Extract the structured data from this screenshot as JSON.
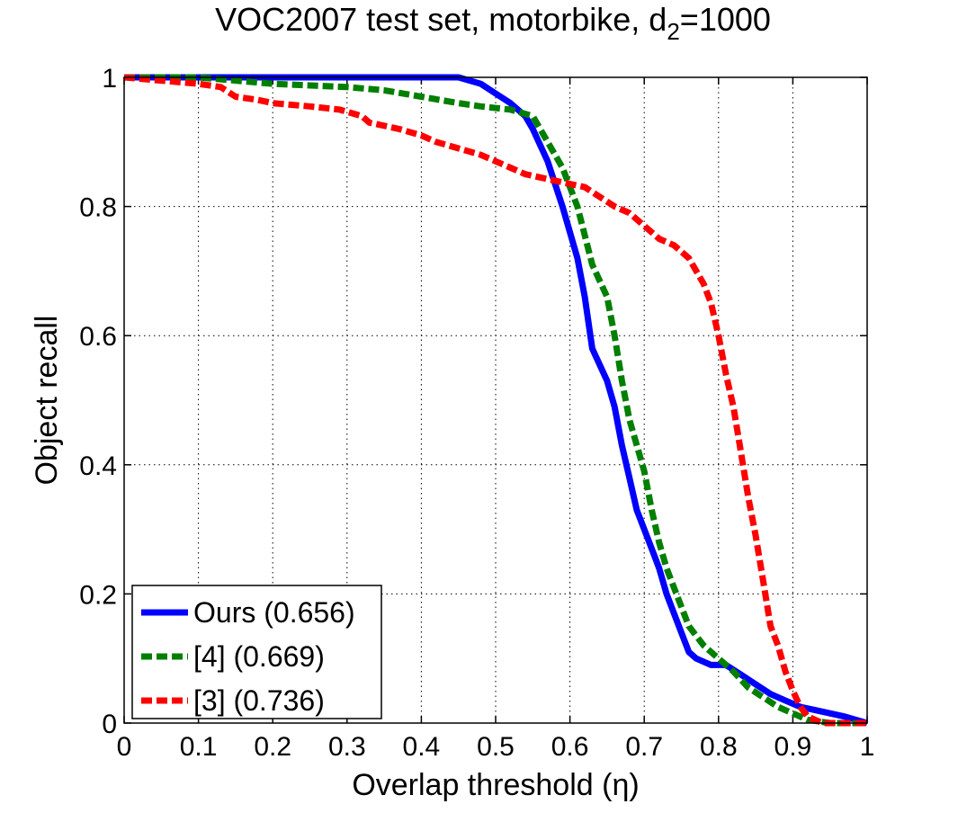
{
  "chart_data": {
    "type": "line",
    "title_main": "VOC2007 test set, motorbike, d",
    "title_sub": "2",
    "title_tail": "=1000",
    "xlabel": "Overlap threshold (η)",
    "ylabel": "Object recall",
    "xlim": [
      0,
      1
    ],
    "ylim": [
      0,
      1
    ],
    "xticks": [
      "0",
      "0.1",
      "0.2",
      "0.3",
      "0.4",
      "0.5",
      "0.6",
      "0.7",
      "0.8",
      "0.9",
      "1"
    ],
    "yticks": [
      "0",
      "0.2",
      "0.4",
      "0.6",
      "0.8",
      "1"
    ],
    "grid": true,
    "legend_position": "bottom-left",
    "series": [
      {
        "name": "Ours (0.656)",
        "color": "#0000ff",
        "style": "solid",
        "points": [
          [
            0,
            1
          ],
          [
            0.1,
            1
          ],
          [
            0.2,
            1
          ],
          [
            0.3,
            1
          ],
          [
            0.4,
            1
          ],
          [
            0.45,
            1
          ],
          [
            0.48,
            0.99
          ],
          [
            0.5,
            0.975
          ],
          [
            0.52,
            0.96
          ],
          [
            0.54,
            0.94
          ],
          [
            0.55,
            0.92
          ],
          [
            0.57,
            0.87
          ],
          [
            0.59,
            0.8
          ],
          [
            0.61,
            0.72
          ],
          [
            0.62,
            0.66
          ],
          [
            0.63,
            0.58
          ],
          [
            0.65,
            0.53
          ],
          [
            0.66,
            0.49
          ],
          [
            0.67,
            0.43
          ],
          [
            0.68,
            0.38
          ],
          [
            0.69,
            0.33
          ],
          [
            0.7,
            0.3
          ],
          [
            0.71,
            0.27
          ],
          [
            0.72,
            0.24
          ],
          [
            0.73,
            0.2
          ],
          [
            0.74,
            0.17
          ],
          [
            0.75,
            0.14
          ],
          [
            0.76,
            0.11
          ],
          [
            0.77,
            0.1
          ],
          [
            0.79,
            0.09
          ],
          [
            0.81,
            0.09
          ],
          [
            0.83,
            0.075
          ],
          [
            0.85,
            0.06
          ],
          [
            0.87,
            0.045
          ],
          [
            0.89,
            0.035
          ],
          [
            0.91,
            0.025
          ],
          [
            0.93,
            0.02
          ],
          [
            0.95,
            0.015
          ],
          [
            0.97,
            0.01
          ],
          [
            1,
            0
          ]
        ]
      },
      {
        "name": "[4] (0.669)",
        "color": "#007f00",
        "style": "dashed",
        "points": [
          [
            0,
            1
          ],
          [
            0.1,
            1
          ],
          [
            0.2,
            0.99
          ],
          [
            0.3,
            0.985
          ],
          [
            0.35,
            0.98
          ],
          [
            0.4,
            0.97
          ],
          [
            0.45,
            0.96
          ],
          [
            0.48,
            0.955
          ],
          [
            0.52,
            0.95
          ],
          [
            0.55,
            0.94
          ],
          [
            0.57,
            0.9
          ],
          [
            0.59,
            0.86
          ],
          [
            0.61,
            0.8
          ],
          [
            0.63,
            0.71
          ],
          [
            0.65,
            0.66
          ],
          [
            0.66,
            0.6
          ],
          [
            0.67,
            0.53
          ],
          [
            0.68,
            0.47
          ],
          [
            0.7,
            0.39
          ],
          [
            0.71,
            0.33
          ],
          [
            0.72,
            0.28
          ],
          [
            0.73,
            0.24
          ],
          [
            0.74,
            0.21
          ],
          [
            0.75,
            0.18
          ],
          [
            0.76,
            0.15
          ],
          [
            0.78,
            0.12
          ],
          [
            0.8,
            0.1
          ],
          [
            0.82,
            0.08
          ],
          [
            0.84,
            0.055
          ],
          [
            0.86,
            0.04
          ],
          [
            0.88,
            0.025
          ],
          [
            0.9,
            0.015
          ],
          [
            0.92,
            0.005
          ],
          [
            0.95,
            0
          ],
          [
            1,
            0
          ]
        ]
      },
      {
        "name": "[3] (0.736)",
        "color": "#ff0000",
        "style": "dashed",
        "points": [
          [
            0,
            1
          ],
          [
            0.05,
            0.995
          ],
          [
            0.1,
            0.99
          ],
          [
            0.13,
            0.985
          ],
          [
            0.15,
            0.97
          ],
          [
            0.18,
            0.965
          ],
          [
            0.2,
            0.96
          ],
          [
            0.25,
            0.955
          ],
          [
            0.29,
            0.95
          ],
          [
            0.32,
            0.94
          ],
          [
            0.33,
            0.93
          ],
          [
            0.37,
            0.92
          ],
          [
            0.4,
            0.91
          ],
          [
            0.42,
            0.9
          ],
          [
            0.45,
            0.89
          ],
          [
            0.48,
            0.88
          ],
          [
            0.5,
            0.87
          ],
          [
            0.52,
            0.86
          ],
          [
            0.54,
            0.85
          ],
          [
            0.56,
            0.845
          ],
          [
            0.58,
            0.84
          ],
          [
            0.6,
            0.835
          ],
          [
            0.62,
            0.83
          ],
          [
            0.64,
            0.815
          ],
          [
            0.66,
            0.8
          ],
          [
            0.68,
            0.79
          ],
          [
            0.7,
            0.77
          ],
          [
            0.72,
            0.75
          ],
          [
            0.74,
            0.74
          ],
          [
            0.76,
            0.72
          ],
          [
            0.78,
            0.68
          ],
          [
            0.79,
            0.65
          ],
          [
            0.8,
            0.6
          ],
          [
            0.81,
            0.54
          ],
          [
            0.82,
            0.49
          ],
          [
            0.83,
            0.42
          ],
          [
            0.84,
            0.35
          ],
          [
            0.85,
            0.29
          ],
          [
            0.86,
            0.22
          ],
          [
            0.87,
            0.15
          ],
          [
            0.88,
            0.12
          ],
          [
            0.89,
            0.08
          ],
          [
            0.9,
            0.05
          ],
          [
            0.91,
            0.025
          ],
          [
            0.92,
            0.01
          ],
          [
            0.94,
            0
          ],
          [
            1,
            0
          ]
        ]
      }
    ]
  }
}
